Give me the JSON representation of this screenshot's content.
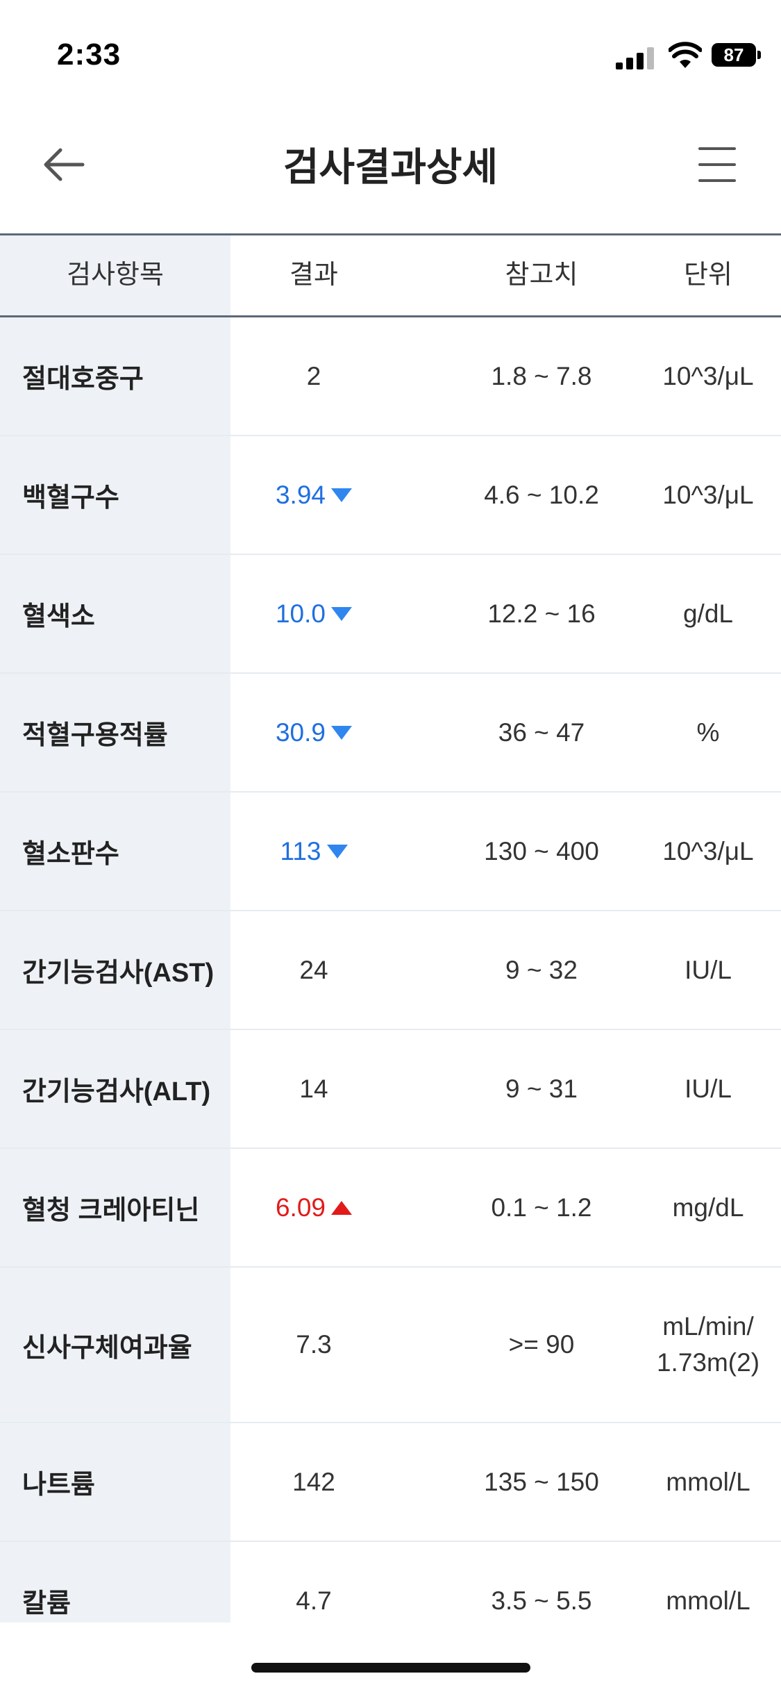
{
  "status": {
    "time": "2:33",
    "battery": "87"
  },
  "header": {
    "title": "검사결과상세"
  },
  "table": {
    "headers": [
      "검사항목",
      "결과",
      "참고치",
      "단위"
    ],
    "rows": [
      {
        "name": "절대호중구",
        "result": "2",
        "flag": "",
        "reference": "1.8 ~ 7.8",
        "unit": "10^3/μL"
      },
      {
        "name": "백혈구수",
        "result": "3.94",
        "flag": "low",
        "reference": "4.6 ~ 10.2",
        "unit": "10^3/μL"
      },
      {
        "name": "혈색소",
        "result": "10.0",
        "flag": "low",
        "reference": "12.2 ~ 16",
        "unit": "g/dL"
      },
      {
        "name": "적혈구용적률",
        "result": "30.9",
        "flag": "low",
        "reference": "36 ~ 47",
        "unit": "%"
      },
      {
        "name": "혈소판수",
        "result": "113",
        "flag": "low",
        "reference": "130 ~ 400",
        "unit": "10^3/μL"
      },
      {
        "name": "간기능검사(AST)",
        "result": "24",
        "flag": "",
        "reference": "9 ~ 32",
        "unit": "IU/L"
      },
      {
        "name": "간기능검사(ALT)",
        "result": "14",
        "flag": "",
        "reference": "9 ~ 31",
        "unit": "IU/L"
      },
      {
        "name": "혈청 크레아티닌",
        "result": "6.09",
        "flag": "high",
        "reference": "0.1 ~ 1.2",
        "unit": "mg/dL"
      },
      {
        "name": "신사구체여과율",
        "result": "7.3",
        "flag": "",
        "reference": ">= 90",
        "unit": "mL/min/",
        "unit2": "1.73m(2)"
      },
      {
        "name": "나트륨",
        "result": "142",
        "flag": "",
        "reference": "135 ~ 150",
        "unit": "mmol/L"
      },
      {
        "name": "칼륨",
        "result": "4.7",
        "flag": "",
        "reference": "3.5 ~ 5.5",
        "unit": "mmol/L"
      }
    ]
  },
  "colors": {
    "low": "#1f6fe0",
    "high": "#e21a1a",
    "label_bg": "#eef2f6",
    "header_border": "#5b6878"
  }
}
